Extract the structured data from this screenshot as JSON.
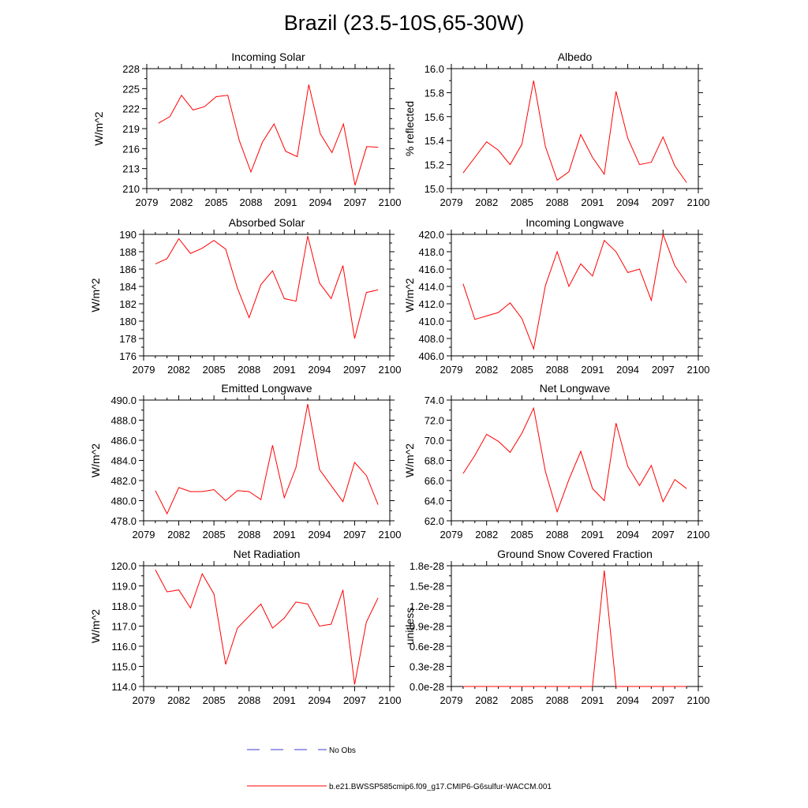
{
  "title": "Brazil (23.5-10S,65-30W)",
  "legend": {
    "no_obs_label": "No Obs",
    "model_label": "b.e21.BWSSP585cmip6.f09_g17.CMIP6-G6sulfur-WACCM.001",
    "no_obs_color": "#3b3bd6",
    "model_color": "#ff0000"
  },
  "chart_data": [
    {
      "type": "line",
      "title": "Incoming Solar",
      "ylabel": "W/m^2",
      "xlim": [
        2079,
        2100
      ],
      "ylim": [
        210,
        228
      ],
      "xticks": [
        "2079",
        "2082",
        "2085",
        "2088",
        "2091",
        "2094",
        "2097",
        "2100"
      ],
      "yticks": [
        "210",
        "213",
        "216",
        "219",
        "222",
        "225",
        "228"
      ],
      "x": [
        2080,
        2081,
        2082,
        2083,
        2084,
        2085,
        2086,
        2087,
        2088,
        2089,
        2090,
        2091,
        2092,
        2093,
        2094,
        2095,
        2096,
        2097,
        2098,
        2099
      ],
      "series": [
        {
          "values": [
            219.8,
            220.8,
            224.0,
            221.8,
            222.3,
            223.8,
            224.0,
            217.2,
            212.5,
            217.0,
            219.7,
            215.6,
            214.8,
            225.6,
            218.2,
            215.4,
            219.7,
            210.5,
            216.3,
            216.2
          ]
        }
      ]
    },
    {
      "type": "line",
      "title": "Albedo",
      "ylabel": "% reflected",
      "xlim": [
        2079,
        2100
      ],
      "ylim": [
        15.0,
        16.0
      ],
      "xticks": [
        "2079",
        "2082",
        "2085",
        "2088",
        "2091",
        "2094",
        "2097",
        "2100"
      ],
      "yticks": [
        "15.0",
        "15.2",
        "15.4",
        "15.6",
        "15.8",
        "16.0"
      ],
      "x": [
        2080,
        2081,
        2082,
        2083,
        2084,
        2085,
        2086,
        2087,
        2088,
        2089,
        2090,
        2091,
        2092,
        2093,
        2094,
        2095,
        2096,
        2097,
        2098,
        2099
      ],
      "series": [
        {
          "values": [
            15.13,
            15.26,
            15.39,
            15.32,
            15.2,
            15.37,
            15.9,
            15.35,
            15.07,
            15.14,
            15.45,
            15.26,
            15.12,
            15.81,
            15.42,
            15.2,
            15.22,
            15.43,
            15.19,
            15.05
          ]
        }
      ]
    },
    {
      "type": "line",
      "title": "Absorbed Solar",
      "ylabel": "W/m^2",
      "xlim": [
        2079,
        2100
      ],
      "ylim": [
        176,
        190
      ],
      "xticks": [
        "2079",
        "2082",
        "2085",
        "2088",
        "2091",
        "2094",
        "2097",
        "2100"
      ],
      "yticks": [
        "176",
        "178",
        "180",
        "182",
        "184",
        "186",
        "188",
        "190"
      ],
      "x": [
        2080,
        2081,
        2082,
        2083,
        2084,
        2085,
        2086,
        2087,
        2088,
        2089,
        2090,
        2091,
        2092,
        2093,
        2094,
        2095,
        2096,
        2097,
        2098,
        2099
      ],
      "series": [
        {
          "values": [
            186.6,
            187.2,
            189.5,
            187.8,
            188.4,
            189.3,
            188.3,
            183.8,
            180.4,
            184.2,
            185.8,
            182.6,
            182.3,
            189.8,
            184.4,
            182.6,
            186.4,
            178.0,
            183.3,
            183.6
          ]
        }
      ]
    },
    {
      "type": "line",
      "title": "Incoming Longwave",
      "ylabel": "W/m^2",
      "xlim": [
        2079,
        2100
      ],
      "ylim": [
        406.0,
        420.0
      ],
      "xticks": [
        "2079",
        "2082",
        "2085",
        "2088",
        "2091",
        "2094",
        "2097",
        "2100"
      ],
      "yticks": [
        "406.0",
        "408.0",
        "410.0",
        "412.0",
        "414.0",
        "416.0",
        "418.0",
        "420.0"
      ],
      "x": [
        2080,
        2081,
        2082,
        2083,
        2084,
        2085,
        2086,
        2087,
        2088,
        2089,
        2090,
        2091,
        2092,
        2093,
        2094,
        2095,
        2096,
        2097,
        2098,
        2099
      ],
      "series": [
        {
          "values": [
            414.3,
            410.2,
            410.6,
            411.0,
            412.1,
            410.3,
            406.8,
            414.1,
            418.0,
            414.0,
            416.6,
            415.2,
            419.3,
            418.0,
            415.6,
            416.0,
            412.4,
            420.0,
            416.4,
            414.4
          ]
        }
      ]
    },
    {
      "type": "line",
      "title": "Emitted Longwave",
      "ylabel": "W/m^2",
      "xlim": [
        2079,
        2100
      ],
      "ylim": [
        478.0,
        490.0
      ],
      "xticks": [
        "2079",
        "2082",
        "2085",
        "2088",
        "2091",
        "2094",
        "2097",
        "2100"
      ],
      "yticks": [
        "478.0",
        "480.0",
        "482.0",
        "484.0",
        "486.0",
        "488.0",
        "490.0"
      ],
      "x": [
        2080,
        2081,
        2082,
        2083,
        2084,
        2085,
        2086,
        2087,
        2088,
        2089,
        2090,
        2091,
        2092,
        2093,
        2094,
        2095,
        2096,
        2097,
        2098,
        2099
      ],
      "series": [
        {
          "values": [
            481.0,
            478.7,
            481.3,
            480.9,
            480.9,
            481.1,
            480.0,
            481.0,
            480.9,
            480.1,
            485.5,
            480.3,
            483.3,
            489.6,
            483.1,
            481.5,
            479.9,
            483.8,
            482.5,
            479.6
          ]
        }
      ]
    },
    {
      "type": "line",
      "title": "Net Longwave",
      "ylabel": "W/m^2",
      "xlim": [
        2079,
        2100
      ],
      "ylim": [
        62.0,
        74.0
      ],
      "xticks": [
        "2079",
        "2082",
        "2085",
        "2088",
        "2091",
        "2094",
        "2097",
        "2100"
      ],
      "yticks": [
        "62.0",
        "64.0",
        "66.0",
        "68.0",
        "70.0",
        "72.0",
        "74.0"
      ],
      "x": [
        2080,
        2081,
        2082,
        2083,
        2084,
        2085,
        2086,
        2087,
        2088,
        2089,
        2090,
        2091,
        2092,
        2093,
        2094,
        2095,
        2096,
        2097,
        2098,
        2099
      ],
      "series": [
        {
          "values": [
            66.7,
            68.5,
            70.6,
            69.9,
            68.8,
            70.7,
            73.2,
            66.9,
            62.9,
            66.1,
            68.9,
            65.2,
            64.0,
            71.7,
            67.4,
            65.5,
            67.5,
            63.9,
            66.1,
            65.2
          ]
        }
      ]
    },
    {
      "type": "line",
      "title": "Net Radiation",
      "ylabel": "W/m^2",
      "xlim": [
        2079,
        2100
      ],
      "ylim": [
        114.0,
        120.0
      ],
      "xticks": [
        "2079",
        "2082",
        "2085",
        "2088",
        "2091",
        "2094",
        "2097",
        "2100"
      ],
      "yticks": [
        "114.0",
        "115.0",
        "116.0",
        "117.0",
        "118.0",
        "119.0",
        "120.0"
      ],
      "x": [
        2080,
        2081,
        2082,
        2083,
        2084,
        2085,
        2086,
        2087,
        2088,
        2089,
        2090,
        2091,
        2092,
        2093,
        2094,
        2095,
        2096,
        2097,
        2098,
        2099
      ],
      "series": [
        {
          "values": [
            119.8,
            118.7,
            118.8,
            117.9,
            119.6,
            118.6,
            115.1,
            116.9,
            117.5,
            118.1,
            116.9,
            117.4,
            118.2,
            118.1,
            117.0,
            117.1,
            118.8,
            114.1,
            117.2,
            118.4
          ]
        }
      ]
    },
    {
      "type": "line",
      "title": "Ground Snow Covered Fraction",
      "ylabel": "unitless",
      "xlim": [
        2079,
        2100
      ],
      "ylim": [
        0,
        1.8e-28
      ],
      "xticks": [
        "2079",
        "2082",
        "2085",
        "2088",
        "2091",
        "2094",
        "2097",
        "2100"
      ],
      "yticks": [
        "0.0e-28",
        "0.3e-28",
        "0.6e-28",
        "0.9e-28",
        "1.2e-28",
        "1.5e-28",
        "1.8e-28"
      ],
      "x": [
        2080,
        2081,
        2082,
        2083,
        2084,
        2085,
        2086,
        2087,
        2088,
        2089,
        2090,
        2091,
        2092,
        2093,
        2094,
        2095,
        2096,
        2097,
        2098,
        2099
      ],
      "series": [
        {
          "values": [
            0,
            0,
            0,
            0,
            0,
            0,
            0,
            0,
            0,
            0,
            0,
            0,
            1.73e-28,
            0,
            0,
            0,
            0,
            0,
            0,
            0
          ]
        }
      ]
    }
  ]
}
